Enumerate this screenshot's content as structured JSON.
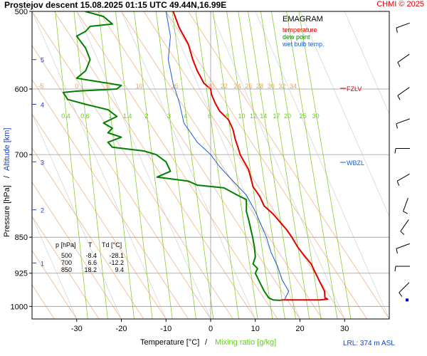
{
  "header": {
    "title": "Prostejov   descent   15.08.2025 01:15 UTC  49.44N,16.99E",
    "copyright": "CHMI © 2025"
  },
  "colors": {
    "temperature": "#e00000",
    "dew_point": "#008000",
    "wet_bulb": "#1a5fd0",
    "dry_adiabat": "#f0b58a",
    "mixing_ratio": "#8ccc33",
    "grid": "#999999",
    "pressure_axis_label": "#000000",
    "altitude_axis_label": "#1a3fc0"
  },
  "legend": {
    "title": "EMAGRAM",
    "items": [
      "temperature",
      "dew point",
      "wet bulb temp."
    ]
  },
  "table": {
    "headers": [
      "p [hPa]",
      "T",
      "Td [°C]"
    ],
    "rows": [
      [
        "500",
        "-8.4",
        "-28.1"
      ],
      [
        "700",
        "6.6",
        "-12.2"
      ],
      [
        "850",
        "18.2",
        "9.4"
      ]
    ]
  },
  "markers": {
    "fzlv": "FZLV",
    "wbzl": "WBZL"
  },
  "footer": {
    "lrl": "LRL: 374 m ASL"
  },
  "chart_data": {
    "type": "line",
    "xlabel": "Temperature [°C]",
    "xlabel_sep": "/",
    "xlabel_mix": "Mixing ratio [g/kg]",
    "ylabel_pressure": "Pressure [hPa]",
    "ylabel_sep": "/",
    "ylabel_altitude": "Altitude [km]",
    "xlim": [
      -40,
      40
    ],
    "y_scale": "log pressure",
    "ylim": [
      1030,
      500
    ],
    "x_ticks": [
      "-30",
      "-20",
      "-10",
      "0",
      "10",
      "20",
      "30"
    ],
    "x_tick_values": [
      -30,
      -20,
      -10,
      0,
      10,
      20,
      30
    ],
    "pressure_ticks": [
      "500",
      "600",
      "700",
      "850",
      "925",
      "1000"
    ],
    "pressure_tick_values": [
      500,
      600,
      700,
      850,
      925,
      1000
    ],
    "altitude_ticks": [
      {
        "label": "5",
        "p": 560
      },
      {
        "label": "4",
        "p": 622
      },
      {
        "label": "3",
        "p": 712
      },
      {
        "label": "2",
        "p": 797
      },
      {
        "label": "1",
        "p": 903
      }
    ],
    "freezing_level_p": 600,
    "wet_bulb_zero_p": 700,
    "mixing_ratio_labels": [
      "0.4",
      "0.6",
      "1",
      "1.4",
      "2",
      "3",
      "4",
      "6",
      "8",
      "10",
      "12",
      "14",
      "17",
      "20",
      "25",
      "30"
    ],
    "mixing_ratio_values": [
      0.4,
      0.6,
      1,
      1.4,
      2,
      3,
      4,
      6,
      8,
      10,
      12,
      14,
      17,
      20,
      25,
      30
    ],
    "mixing_ratio_label_p": 630,
    "dry_adiabat_labels": [
      "-5",
      "0",
      "5",
      "10",
      "15",
      "20",
      "22",
      "24",
      "26",
      "28",
      "30",
      "32",
      "34"
    ],
    "dry_adiabat_label_x": [
      -38,
      -30,
      -23,
      -16,
      -8,
      0,
      3,
      6,
      8.5,
      11,
      13.5,
      16,
      18.5
    ],
    "dry_adiabat_label_p": 596,
    "dry_adiabat_slope": 7,
    "series": [
      {
        "name": "temperature",
        "points": [
          [
            -8.4,
            500
          ],
          [
            -7,
            520
          ],
          [
            -5,
            540
          ],
          [
            -4,
            560
          ],
          [
            -3,
            575
          ],
          [
            -1.5,
            592
          ],
          [
            0,
            600
          ],
          [
            0.2,
            608
          ],
          [
            1,
            620
          ],
          [
            2,
            632
          ],
          [
            4,
            645
          ],
          [
            5,
            660
          ],
          [
            5.5,
            675
          ],
          [
            6.2,
            690
          ],
          [
            6.6,
            700
          ],
          [
            7.5,
            712
          ],
          [
            8.5,
            725
          ],
          [
            9,
            740
          ],
          [
            9.5,
            755
          ],
          [
            11,
            772
          ],
          [
            12,
            790
          ],
          [
            14,
            805
          ],
          [
            15.5,
            820
          ],
          [
            17,
            835
          ],
          [
            18.2,
            850
          ],
          [
            19.5,
            870
          ],
          [
            21,
            888
          ],
          [
            22.5,
            905
          ],
          [
            23.5,
            925
          ],
          [
            24.5,
            945
          ],
          [
            25.5,
            965
          ],
          [
            25.6,
            980
          ],
          [
            26.2,
            983
          ],
          [
            24.5,
            985
          ],
          [
            21,
            985
          ],
          [
            19,
            985
          ],
          [
            16,
            985
          ],
          [
            15.5,
            986
          ]
        ]
      },
      {
        "name": "dew point",
        "points": [
          [
            -28.1,
            500
          ],
          [
            -24,
            506
          ],
          [
            -22,
            515
          ],
          [
            -27,
            518
          ],
          [
            -28,
            524
          ],
          [
            -30,
            530
          ],
          [
            -28,
            545
          ],
          [
            -27,
            560
          ],
          [
            -28,
            575
          ],
          [
            -30,
            585
          ],
          [
            -25,
            590
          ],
          [
            -20,
            595
          ],
          [
            -21,
            600
          ],
          [
            -30,
            603
          ],
          [
            -33,
            605
          ],
          [
            -32,
            615
          ],
          [
            -28,
            622
          ],
          [
            -23,
            630
          ],
          [
            -21,
            640
          ],
          [
            -24,
            650
          ],
          [
            -22,
            658
          ],
          [
            -23,
            665
          ],
          [
            -20,
            672
          ],
          [
            -23,
            680
          ],
          [
            -22,
            688
          ],
          [
            -15,
            694
          ],
          [
            -12.2,
            700
          ],
          [
            -10,
            712
          ],
          [
            -9,
            728
          ],
          [
            -12,
            738
          ],
          [
            -5,
            745
          ],
          [
            -3,
            752
          ],
          [
            3,
            757
          ],
          [
            6,
            770
          ],
          [
            8,
            778
          ],
          [
            8,
            800
          ],
          [
            8.5,
            815
          ],
          [
            9.0,
            835
          ],
          [
            9.4,
            850
          ],
          [
            9.8,
            870
          ],
          [
            10,
            890
          ],
          [
            9.5,
            905
          ],
          [
            10.5,
            915
          ],
          [
            10,
            925
          ],
          [
            11,
            945
          ],
          [
            12,
            965
          ],
          [
            13,
            980
          ],
          [
            14,
            985
          ],
          [
            15.5,
            986
          ]
        ]
      },
      {
        "name": "wet bulb temp.",
        "points": [
          [
            -10,
            500
          ],
          [
            -9,
            530
          ],
          [
            -9.5,
            560
          ],
          [
            -8.5,
            590
          ],
          [
            -7,
            620
          ],
          [
            -6,
            650
          ],
          [
            -3,
            680
          ],
          [
            0,
            700
          ],
          [
            2,
            720
          ],
          [
            5,
            745
          ],
          [
            8,
            770
          ],
          [
            10,
            800
          ],
          [
            11.5,
            830
          ],
          [
            12.5,
            850
          ],
          [
            13.5,
            880
          ],
          [
            15,
            910
          ],
          [
            16,
            940
          ],
          [
            17.5,
            965
          ],
          [
            16.5,
            985
          ],
          [
            15.5,
            986
          ]
        ]
      }
    ],
    "wind_barbs": [
      {
        "p": 515,
        "from_deg": 250
      },
      {
        "p": 555,
        "from_deg": 235
      },
      {
        "p": 600,
        "from_deg": 235
      },
      {
        "p": 645,
        "from_deg": 250
      },
      {
        "p": 690,
        "from_deg": 270
      },
      {
        "p": 735,
        "from_deg": 240
      },
      {
        "p": 780,
        "from_deg": 200
      },
      {
        "p": 820,
        "from_deg": 215
      },
      {
        "p": 865,
        "from_deg": 250
      },
      {
        "p": 910,
        "from_deg": 270
      },
      {
        "p": 950,
        "from_deg": 225
      },
      {
        "p": 985,
        "from_deg": 0
      }
    ]
  }
}
